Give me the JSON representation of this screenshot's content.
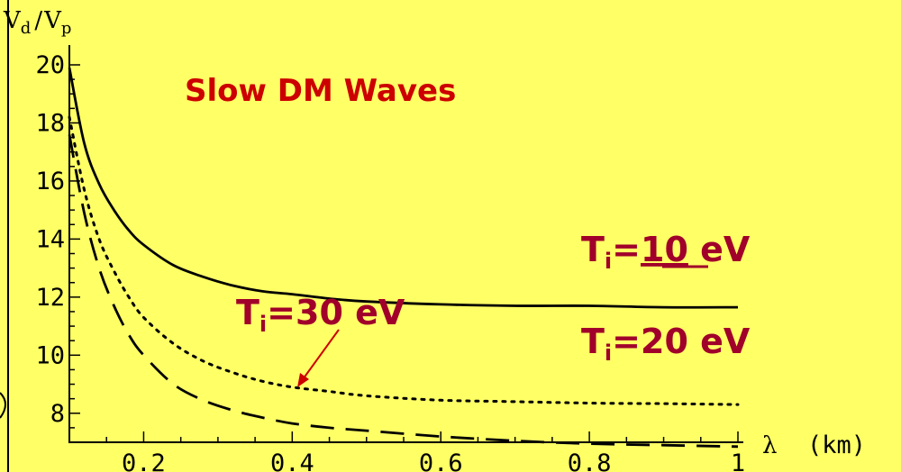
{
  "chart_data": {
    "type": "line",
    "title": "Slow DM Waves",
    "ylabel": {
      "main": "V",
      "sub1": "d",
      "sep": "/",
      "main2": "V",
      "sub2": "p"
    },
    "xlabel": {
      "symbol": "λ",
      "unit": "(km)"
    },
    "xlim": [
      0.1,
      1.0
    ],
    "ylim": [
      7,
      20
    ],
    "x_ticks": [
      0.2,
      0.4,
      0.6,
      0.8,
      1.0
    ],
    "x_tick_labels": [
      "0.2",
      "0.4",
      "0.6",
      "0.8",
      "1"
    ],
    "y_ticks": [
      8,
      10,
      12,
      14,
      16,
      18,
      20
    ],
    "y_tick_labels": [
      "8",
      "10",
      "12",
      "14",
      "16",
      "18",
      "20"
    ],
    "colors": {
      "background": "#ffff66",
      "title": "#cc0000",
      "annotation": "#a0002a",
      "arrow": "#cc0000"
    },
    "series": [
      {
        "style": "solid",
        "x": [
          0.1,
          0.12,
          0.14,
          0.16,
          0.18,
          0.2,
          0.24,
          0.28,
          0.32,
          0.36,
          0.4,
          0.45,
          0.5,
          0.6,
          0.7,
          0.8,
          0.9,
          1.0
        ],
        "y": [
          19.9,
          17.3,
          15.9,
          15.0,
          14.3,
          13.8,
          13.1,
          12.7,
          12.4,
          12.2,
          12.1,
          11.95,
          11.85,
          11.75,
          11.7,
          11.7,
          11.65,
          11.65
        ]
      },
      {
        "style": "dotted",
        "x": [
          0.1,
          0.12,
          0.14,
          0.16,
          0.18,
          0.2,
          0.24,
          0.28,
          0.32,
          0.36,
          0.4,
          0.45,
          0.5,
          0.6,
          0.7,
          0.8,
          0.9,
          1.0
        ],
        "y": [
          18.2,
          15.7,
          14.0,
          12.9,
          12.0,
          11.3,
          10.4,
          9.8,
          9.4,
          9.1,
          8.9,
          8.75,
          8.6,
          8.45,
          8.4,
          8.35,
          8.33,
          8.3
        ]
      },
      {
        "style": "dashed",
        "x": [
          0.1,
          0.12,
          0.14,
          0.16,
          0.18,
          0.2,
          0.24,
          0.28,
          0.32,
          0.36,
          0.4,
          0.45,
          0.5,
          0.6,
          0.7,
          0.8,
          0.9,
          1.0
        ],
        "y": [
          17.6,
          14.9,
          13.0,
          11.7,
          10.7,
          10.0,
          9.0,
          8.45,
          8.1,
          7.85,
          7.65,
          7.5,
          7.4,
          7.2,
          7.05,
          6.95,
          6.9,
          6.85
        ]
      }
    ],
    "annotations": [
      {
        "id": "t10",
        "prefix": "T",
        "sub": "i",
        "eq": "=",
        "value": "10",
        "unit": " eV",
        "underline": true
      },
      {
        "id": "t20",
        "prefix": "T",
        "sub": "i",
        "eq": "=",
        "value": "20",
        "unit": " eV",
        "underline": false
      },
      {
        "id": "t30",
        "prefix": "T",
        "sub": "i",
        "eq": "=",
        "value": "30",
        "unit": " eV",
        "underline": false
      }
    ]
  }
}
